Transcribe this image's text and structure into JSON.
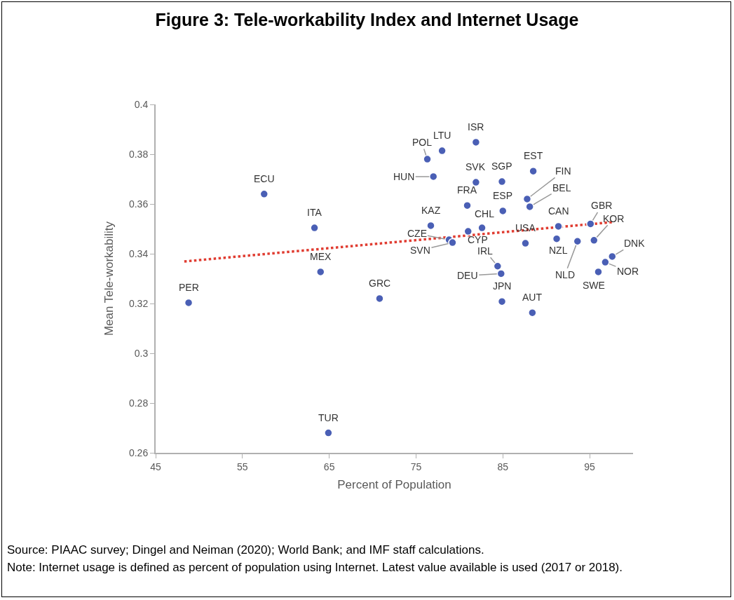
{
  "chart_data": {
    "type": "scatter",
    "title": "Figure 3: Tele-workability Index and Internet Usage",
    "xlabel": "Percent of Population",
    "ylabel": "Mean Tele-workability",
    "xlim": [
      45,
      100
    ],
    "xticks": [
      45,
      55,
      65,
      75,
      85,
      95
    ],
    "ylim": [
      0.26,
      0.4
    ],
    "yticks": [
      0.26,
      0.28,
      0.3,
      0.32,
      0.34,
      0.36,
      0.38,
      0.4
    ],
    "marker": "circle",
    "series": [
      {
        "color": "#4a5fb5",
        "x": [
          48.8,
          57.5,
          63.3,
          64.0,
          70.8,
          64.9,
          78.0,
          76.3,
          77.0,
          81.9,
          81.9,
          84.9,
          80.9,
          85.0,
          76.7,
          82.6,
          81.0,
          78.8,
          79.2,
          88.5,
          87.8,
          88.1,
          87.6,
          91.4,
          91.2,
          93.6,
          95.1,
          95.5,
          97.6,
          96.8,
          96.0,
          84.4,
          84.8,
          84.9,
          88.4
        ],
        "values": [
          0.3203,
          0.364,
          0.3504,
          0.3327,
          0.322,
          0.268,
          0.3814,
          0.378,
          0.371,
          0.3848,
          0.3687,
          0.369,
          0.3594,
          0.3572,
          0.3513,
          0.3504,
          0.349,
          0.3456,
          0.3445,
          0.3732,
          0.362,
          0.3589,
          0.3442,
          0.351,
          0.346,
          0.345,
          0.352,
          0.3454,
          0.3389,
          0.3366,
          0.3327,
          0.335,
          0.332,
          0.3208,
          0.3163
        ]
      },
      {
        "type": "line",
        "color": "#e03c31",
        "line_style": "dotted",
        "marker": "none",
        "x": [
          48.3,
          97.6
        ],
        "values": [
          0.3369,
          0.3527
        ]
      }
    ],
    "annotations": [
      {
        "text": "PER",
        "x": 48.8,
        "y": 0.3203
      },
      {
        "text": "ECU",
        "x": 57.5,
        "y": 0.364
      },
      {
        "text": "ITA",
        "x": 63.3,
        "y": 0.3504
      },
      {
        "text": "MEX",
        "x": 64.0,
        "y": 0.3327
      },
      {
        "text": "GRC",
        "x": 70.8,
        "y": 0.322
      },
      {
        "text": "TUR",
        "x": 64.9,
        "y": 0.268
      },
      {
        "text": "LTU",
        "x": 78.0,
        "y": 0.3814
      },
      {
        "text": "POL",
        "x": 76.3,
        "y": 0.378
      },
      {
        "text": "HUN",
        "x": 77.0,
        "y": 0.371
      },
      {
        "text": "ISR",
        "x": 81.9,
        "y": 0.3848
      },
      {
        "text": "SVK",
        "x": 81.9,
        "y": 0.3687
      },
      {
        "text": "SGP",
        "x": 84.9,
        "y": 0.369
      },
      {
        "text": "FRA",
        "x": 80.9,
        "y": 0.3594
      },
      {
        "text": "ESP",
        "x": 85.0,
        "y": 0.3572
      },
      {
        "text": "KAZ",
        "x": 76.7,
        "y": 0.3513
      },
      {
        "text": "CHL",
        "x": 82.6,
        "y": 0.3504
      },
      {
        "text": "CYP",
        "x": 81.0,
        "y": 0.349
      },
      {
        "text": "CZE",
        "x": 78.8,
        "y": 0.3456
      },
      {
        "text": "SVN",
        "x": 79.2,
        "y": 0.3445
      },
      {
        "text": "EST",
        "x": 88.5,
        "y": 0.3732
      },
      {
        "text": "FIN",
        "x": 87.8,
        "y": 0.362
      },
      {
        "text": "BEL",
        "x": 88.1,
        "y": 0.3589
      },
      {
        "text": "USA",
        "x": 87.6,
        "y": 0.3442
      },
      {
        "text": "CAN",
        "x": 91.4,
        "y": 0.351
      },
      {
        "text": "NZL",
        "x": 91.2,
        "y": 0.346
      },
      {
        "text": "NLD",
        "x": 93.6,
        "y": 0.345
      },
      {
        "text": "GBR",
        "x": 95.1,
        "y": 0.352
      },
      {
        "text": "KOR",
        "x": 95.5,
        "y": 0.3454
      },
      {
        "text": "DNK",
        "x": 97.6,
        "y": 0.3389
      },
      {
        "text": "NOR",
        "x": 96.8,
        "y": 0.3366
      },
      {
        "text": "SWE",
        "x": 96.0,
        "y": 0.3327
      },
      {
        "text": "IRL",
        "x": 84.4,
        "y": 0.335
      },
      {
        "text": "DEU",
        "x": 84.8,
        "y": 0.332
      },
      {
        "text": "JPN",
        "x": 84.9,
        "y": 0.3208
      },
      {
        "text": "AUT",
        "x": 88.4,
        "y": 0.3163
      },
      "Source: PIAAC survey; Dingel and Neiman (2020);  World Bank; and IMF staff calculations.",
      "Note: Internet usage is defined as percent of population using Internet. Latest value available is used (2017 or 2018)."
    ]
  }
}
